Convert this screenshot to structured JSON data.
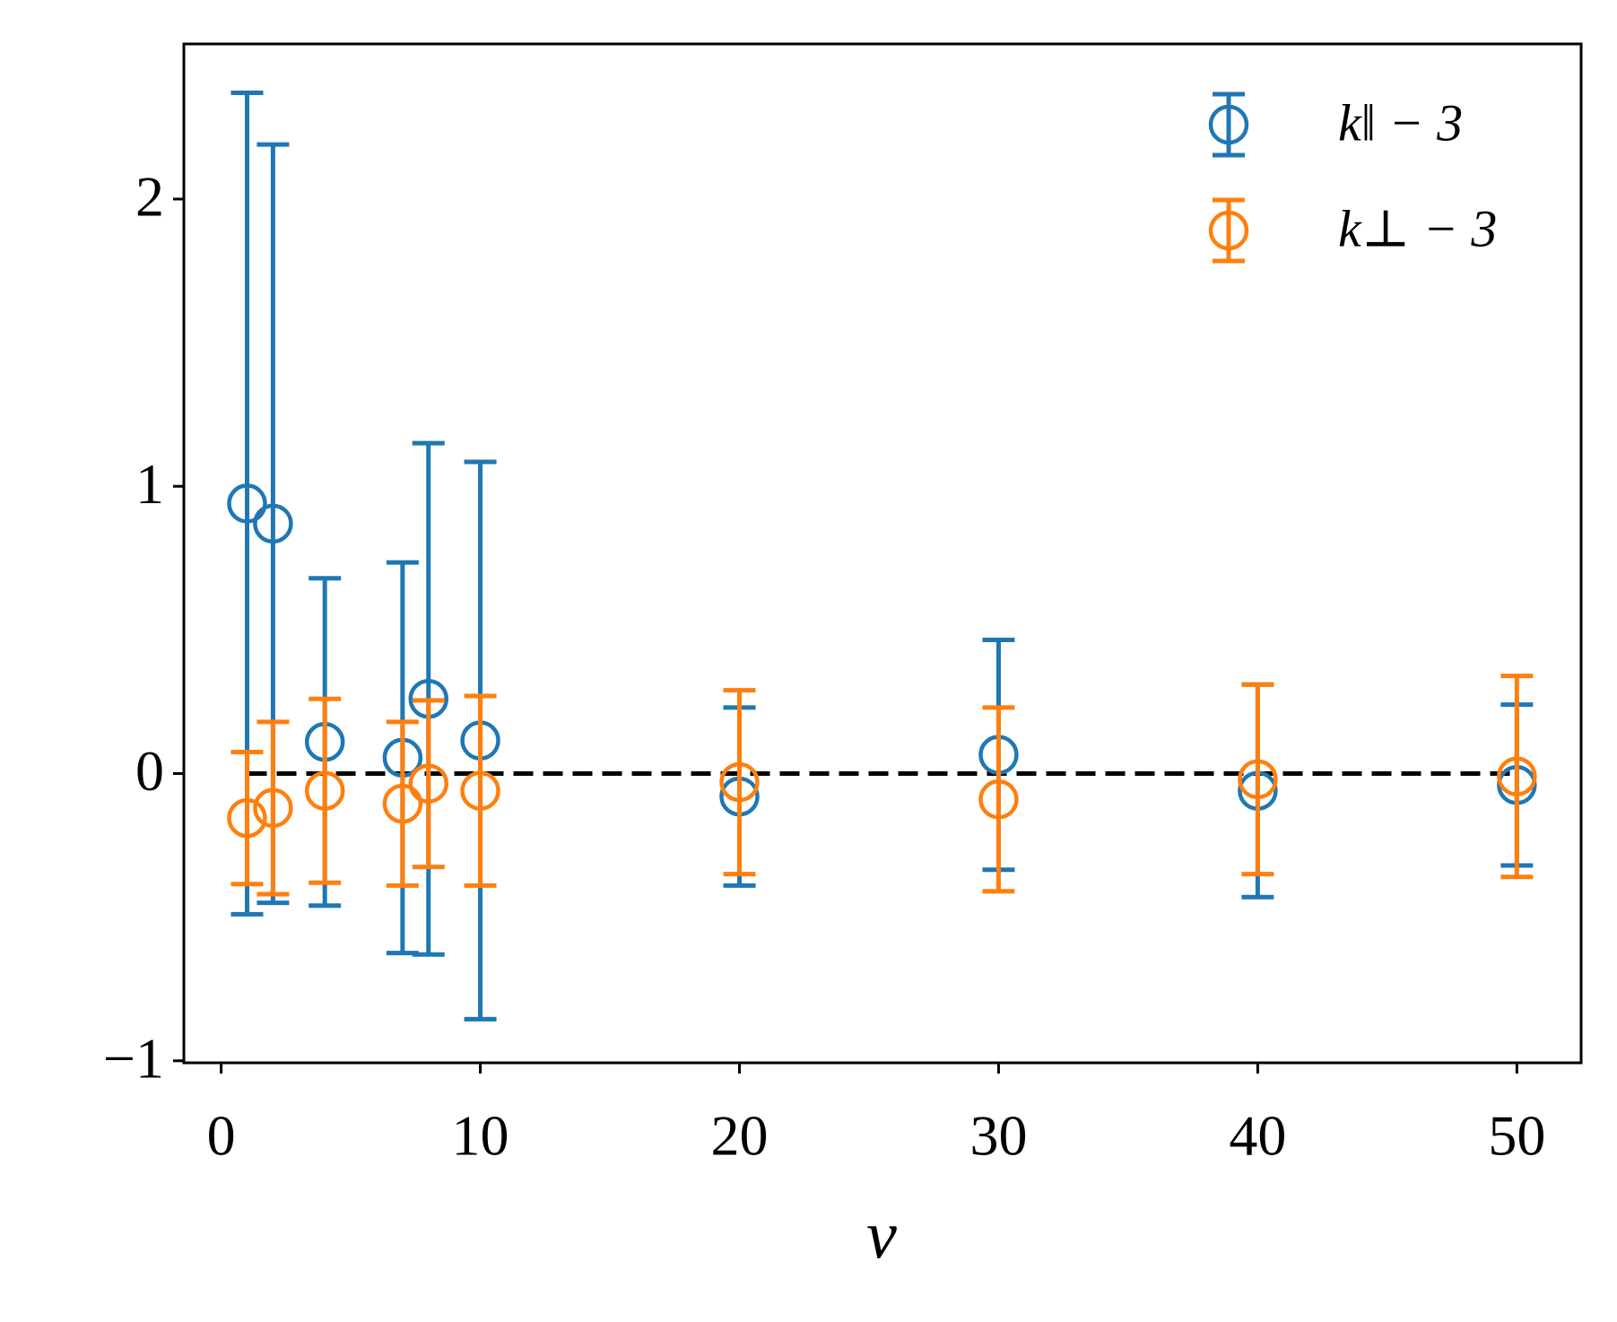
{
  "chart_data": {
    "type": "errorbar",
    "x_label": "v",
    "xlim": [
      -1.44,
      52.48
    ],
    "xticks": [
      0,
      10,
      20,
      30,
      40,
      50
    ],
    "ylim": [
      -1.007,
      2.54
    ],
    "yticks": [
      {
        "value": -1,
        "label": "−1"
      },
      0,
      1,
      2
    ],
    "hline": {
      "y": 0,
      "xmin": 1,
      "xmax": 50,
      "color": "#000000",
      "style": "dashed"
    },
    "legend": "upper right",
    "series": [
      {
        "name": "k‖ − 3",
        "color": "#1f77b4",
        "x": [
          1,
          2,
          4,
          7,
          8,
          10,
          20,
          30,
          40,
          50
        ],
        "values": [
          0.94,
          0.87,
          0.11,
          0.055,
          0.26,
          0.115,
          -0.08,
          0.065,
          -0.06,
          -0.04
        ],
        "errors": [
          1.43,
          1.32,
          0.57,
          0.68,
          0.89,
          0.97,
          0.31,
          0.4,
          0.37,
          0.28
        ]
      },
      {
        "name": "k⊥ − 3",
        "color": "#ff7f0e",
        "x": [
          1,
          2,
          4,
          7,
          8,
          10,
          20,
          30,
          40,
          50
        ],
        "values": [
          -0.155,
          -0.12,
          -0.06,
          -0.105,
          -0.035,
          -0.06,
          -0.03,
          -0.09,
          -0.02,
          -0.01
        ],
        "errors": [
          0.23,
          0.3,
          0.32,
          0.285,
          0.29,
          0.33,
          0.32,
          0.32,
          0.33,
          0.35
        ]
      }
    ]
  }
}
